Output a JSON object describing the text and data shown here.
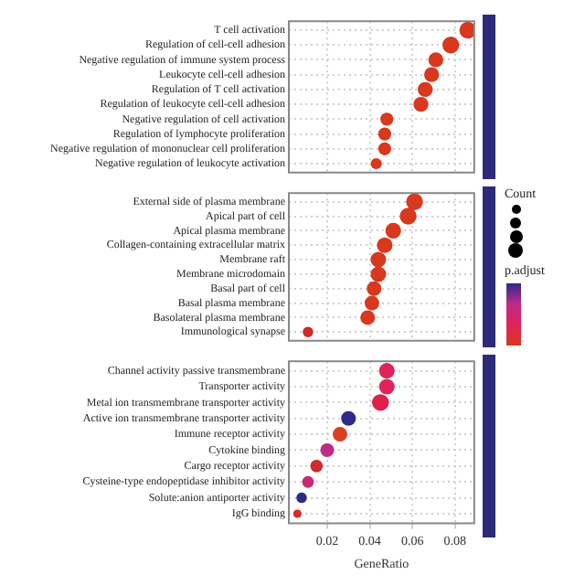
{
  "chart_data": [
    {
      "type": "bubble",
      "orientation": "horizontal",
      "categories": [
        "T cell activation",
        "Regulation of cell-cell adhesion",
        "Negative regulation of immune system process",
        "Leukocyte cell-cell adhesion",
        "Regulation of T cell activation",
        "Regulation of leukocyte cell-cell adhesion",
        "Negative regulation of cell activation",
        "Regulation of lymphocyte proliferation",
        "Negative regulation of mononuclear cell proliferation",
        "Negative regulation of leukocyte activation"
      ],
      "values": [
        0.086,
        0.078,
        0.071,
        0.069,
        0.066,
        0.064,
        0.048,
        0.047,
        0.047,
        0.043
      ],
      "sizes": [
        1,
        1,
        0.79,
        0.79,
        0.79,
        0.79,
        0.6,
        0.6,
        0.6,
        0.44
      ],
      "colors": [
        "#d8381e",
        "#d8381e",
        "#d8381e",
        "#d8381e",
        "#d8381e",
        "#d8381e",
        "#d8381e",
        "#d8381e",
        "#d8381e",
        "#d8381e"
      ],
      "xlim": [
        0.002,
        0.089
      ],
      "xticks": [
        0.02,
        0.04,
        0.06,
        0.08
      ],
      "grid": true,
      "tick_labels": "y"
    },
    {
      "type": "bubble",
      "orientation": "horizontal",
      "categories": [
        "External side of plasma membrane",
        "Apical part of cell",
        "Apical plasma membrane",
        "Collagen-containing extracellular matrix",
        "Membrane raft",
        "Membrane microdomain",
        "Basal part of cell",
        "Basal plasma membrane",
        "Basolateral plasma membrane",
        "Immunological synapse"
      ],
      "values": [
        0.061,
        0.058,
        0.051,
        0.047,
        0.044,
        0.044,
        0.042,
        0.041,
        0.039,
        0.011
      ],
      "sizes": [
        1,
        1,
        0.86,
        0.86,
        0.86,
        0.86,
        0.76,
        0.76,
        0.76,
        0.39
      ],
      "colors": [
        "#d8381e",
        "#d8381e",
        "#d8381e",
        "#d8381e",
        "#d8381e",
        "#d8381e",
        "#d8381e",
        "#d8381e",
        "#d8381e",
        "#cc2a2a"
      ],
      "xlim": [
        0.002,
        0.089
      ],
      "xticks": [
        0.02,
        0.04,
        0.06,
        0.08
      ],
      "grid": true,
      "tick_labels": "y",
      "annotations": [
        "Count",
        "p.adjust"
      ]
    },
    {
      "type": "bubble",
      "orientation": "horizontal",
      "categories": [
        "Channel activity passive transmembrane",
        "Transporter activity",
        "Metal ion transmembrane transporter activity",
        "Active ion transmembrane transporter activity",
        "Immune receptor activity",
        "Cytokine binding",
        "Cargo receptor activity",
        "Cysteine-type endopeptidase inhibitor activity",
        "Solute:anion antiporter activity",
        "IgG binding"
      ],
      "values": [
        0.048,
        0.048,
        0.045,
        0.03,
        0.026,
        0.02,
        0.015,
        0.011,
        0.008,
        0.006
      ],
      "sizes": [
        0.86,
        0.86,
        1,
        0.76,
        0.76,
        0.68,
        0.56,
        0.49,
        0.39,
        0.25
      ],
      "colors": [
        "#e0245a",
        "#e0245a",
        "#e01f4a",
        "#2e2a8a",
        "#d84020",
        "#c02a8a",
        "#d02a30",
        "#c82a7a",
        "#2e2a8a",
        "#d82a2a"
      ],
      "xlim": [
        0.002,
        0.089
      ],
      "xticks": [
        0.02,
        0.04,
        0.06,
        0.08
      ],
      "grid": true,
      "xlabel": "GeneRatio"
    }
  ]
}
